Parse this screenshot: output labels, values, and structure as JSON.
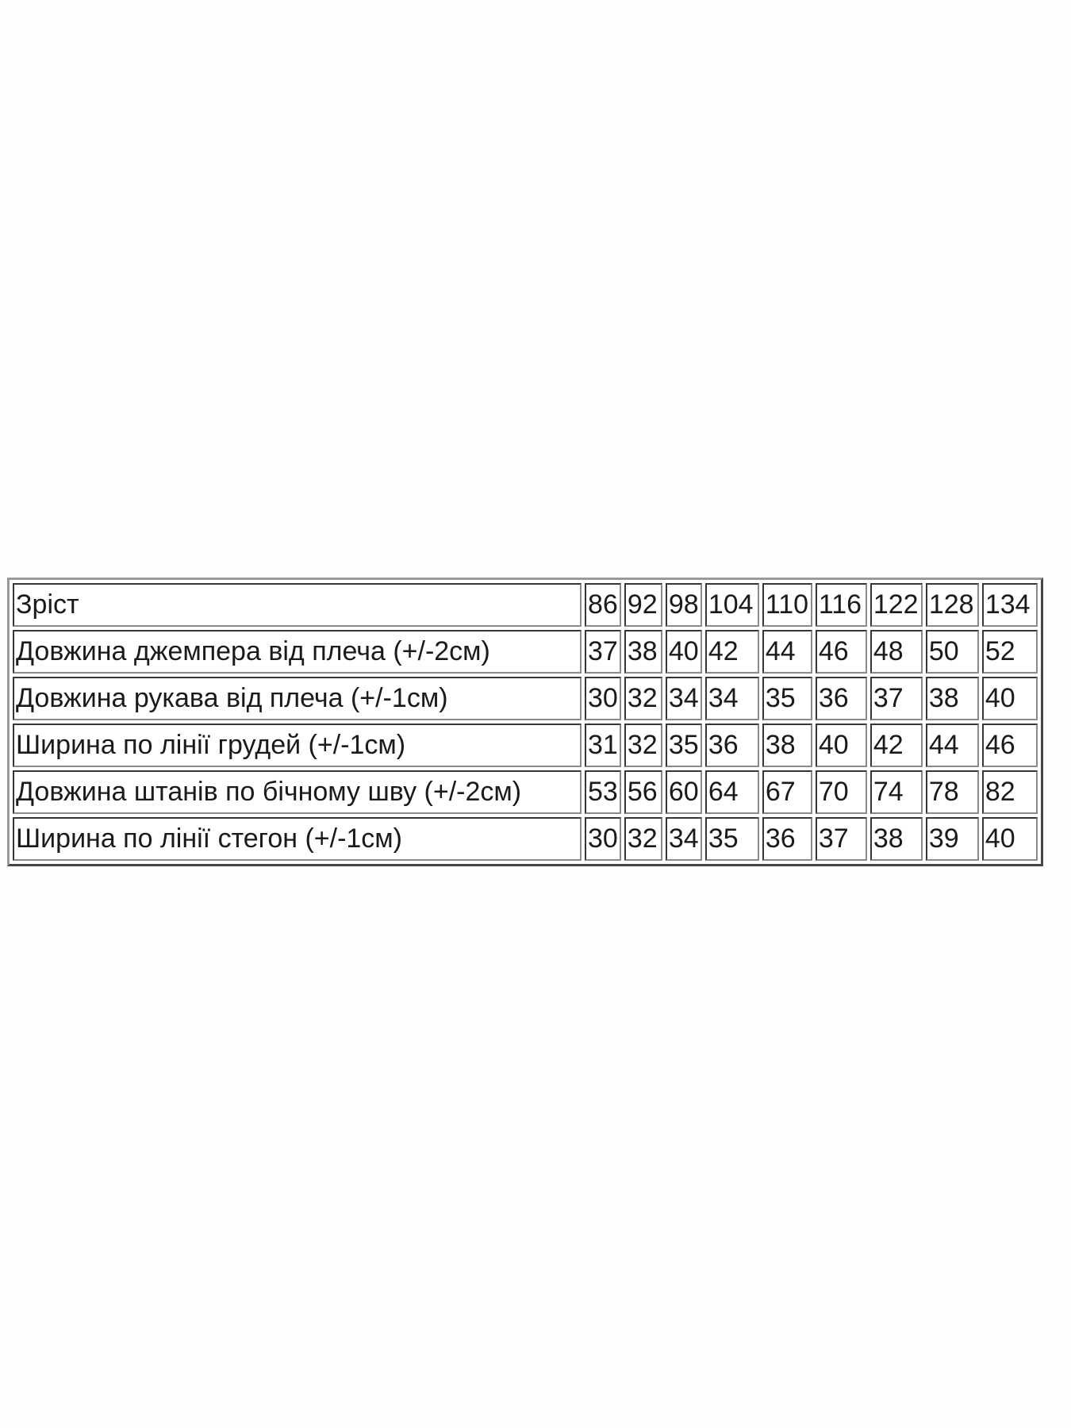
{
  "size_table": {
    "rows": [
      {
        "label": "Зріст",
        "values": [
          "86",
          "92",
          "98",
          "104",
          "110",
          "116",
          "122",
          "128",
          "134"
        ]
      },
      {
        "label": "Довжина джемпера від плеча (+/-2см)",
        "values": [
          "37",
          "38",
          "40",
          "42",
          "44",
          "46",
          "48",
          "50",
          "52"
        ]
      },
      {
        "label": "Довжина рукава від плеча (+/-1см)",
        "values": [
          "30",
          "32",
          "34",
          "34",
          "35",
          "36",
          "37",
          "38",
          "40"
        ]
      },
      {
        "label": "Ширина по лінії грудей (+/-1см)",
        "values": [
          "31",
          "32",
          "35",
          "36",
          "38",
          "40",
          "42",
          "44",
          "46"
        ]
      },
      {
        "label": "Довжина штанів по бічному шву (+/-2см)",
        "values": [
          "53",
          "56",
          "60",
          "64",
          "67",
          "70",
          "74",
          "78",
          "82"
        ]
      },
      {
        "label": "Ширина по лінії стегон (+/-1см)",
        "values": [
          "30",
          "32",
          "34",
          "35",
          "36",
          "37",
          "38",
          "39",
          "40"
        ]
      }
    ]
  }
}
